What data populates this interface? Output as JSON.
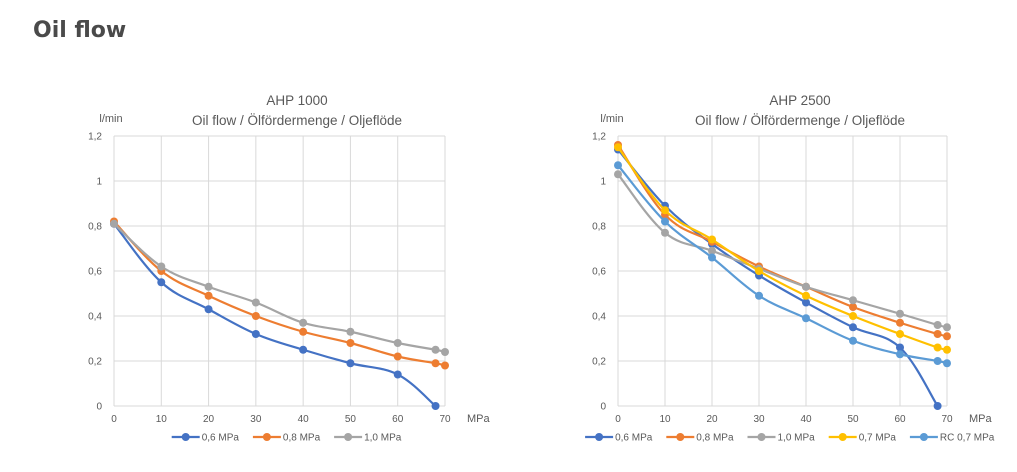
{
  "page": {
    "title": "Oil flow"
  },
  "chart_data": [
    {
      "type": "line",
      "title": "AHP 1000",
      "subtitle": "Oil flow / Ölfördermenge / Oljeflöde",
      "ylabel": "l/min",
      "xlabel": "MPa",
      "xlim": [
        0,
        70
      ],
      "ylim": [
        0,
        1.2
      ],
      "xticks": [
        0,
        10,
        20,
        30,
        40,
        50,
        60,
        70
      ],
      "xtick_labels": [
        "0",
        "10",
        "20",
        "30",
        "40",
        "50",
        "60",
        "70"
      ],
      "yticks": [
        0,
        0.2,
        0.4,
        0.6,
        0.8,
        1,
        1.2
      ],
      "ytick_labels": [
        "0",
        "0,2",
        "0,4",
        "0,6",
        "0,8",
        "1",
        "1,2"
      ],
      "grid": true,
      "legend_position": "bottom",
      "series": [
        {
          "name": "0,6 MPa",
          "color": "#4472C4",
          "x": [
            0,
            10,
            20,
            30,
            40,
            50,
            60,
            68
          ],
          "y": [
            0.81,
            0.55,
            0.43,
            0.32,
            0.25,
            0.19,
            0.14,
            0.0
          ]
        },
        {
          "name": "0,8 MPa",
          "color": "#ED7D31",
          "x": [
            0,
            10,
            20,
            30,
            40,
            50,
            60,
            68,
            70
          ],
          "y": [
            0.82,
            0.6,
            0.49,
            0.4,
            0.33,
            0.28,
            0.22,
            0.19,
            0.18
          ]
        },
        {
          "name": "1,0 MPa",
          "color": "#A5A5A5",
          "x": [
            0,
            10,
            20,
            30,
            40,
            50,
            60,
            68,
            70
          ],
          "y": [
            0.81,
            0.62,
            0.53,
            0.46,
            0.37,
            0.33,
            0.28,
            0.25,
            0.24
          ]
        }
      ]
    },
    {
      "type": "line",
      "title": "AHP 2500",
      "subtitle": "Oil flow / Ölfördermenge / Oljeflöde",
      "ylabel": "l/min",
      "xlabel": "MPa",
      "xlim": [
        0,
        70
      ],
      "ylim": [
        0,
        1.2
      ],
      "xticks": [
        0,
        10,
        20,
        30,
        40,
        50,
        60,
        70
      ],
      "xtick_labels": [
        "0",
        "10",
        "20",
        "30",
        "40",
        "50",
        "60",
        "70"
      ],
      "yticks": [
        0,
        0.2,
        0.4,
        0.6,
        0.8,
        1,
        1.2
      ],
      "ytick_labels": [
        "0",
        "0,2",
        "0,4",
        "0,6",
        "0,8",
        "1",
        "1,2"
      ],
      "grid": true,
      "legend_position": "bottom",
      "series": [
        {
          "name": "0,6 MPa",
          "color": "#4472C4",
          "x": [
            0,
            10,
            20,
            30,
            40,
            50,
            60,
            68
          ],
          "y": [
            1.14,
            0.89,
            0.72,
            0.58,
            0.46,
            0.35,
            0.26,
            0.0
          ]
        },
        {
          "name": "0,8 MPa",
          "color": "#ED7D31",
          "x": [
            0,
            10,
            20,
            30,
            40,
            50,
            60,
            68,
            70
          ],
          "y": [
            1.16,
            0.85,
            0.73,
            0.62,
            0.53,
            0.44,
            0.37,
            0.32,
            0.31
          ]
        },
        {
          "name": "1,0 MPa",
          "color": "#A5A5A5",
          "x": [
            0,
            10,
            20,
            30,
            40,
            50,
            60,
            68,
            70
          ],
          "y": [
            1.03,
            0.77,
            0.69,
            0.61,
            0.53,
            0.47,
            0.41,
            0.36,
            0.35
          ]
        },
        {
          "name": "0,7 MPa",
          "color": "#FFC000",
          "x": [
            0,
            10,
            20,
            30,
            40,
            50,
            60,
            68,
            70
          ],
          "y": [
            1.15,
            0.87,
            0.74,
            0.6,
            0.49,
            0.4,
            0.32,
            0.26,
            0.25
          ]
        },
        {
          "name": "RC 0,7 MPa",
          "color": "#5B9BD5",
          "x": [
            0,
            10,
            20,
            30,
            40,
            50,
            60,
            68,
            70
          ],
          "y": [
            1.07,
            0.82,
            0.66,
            0.49,
            0.39,
            0.29,
            0.23,
            0.2,
            0.19
          ]
        }
      ]
    }
  ]
}
